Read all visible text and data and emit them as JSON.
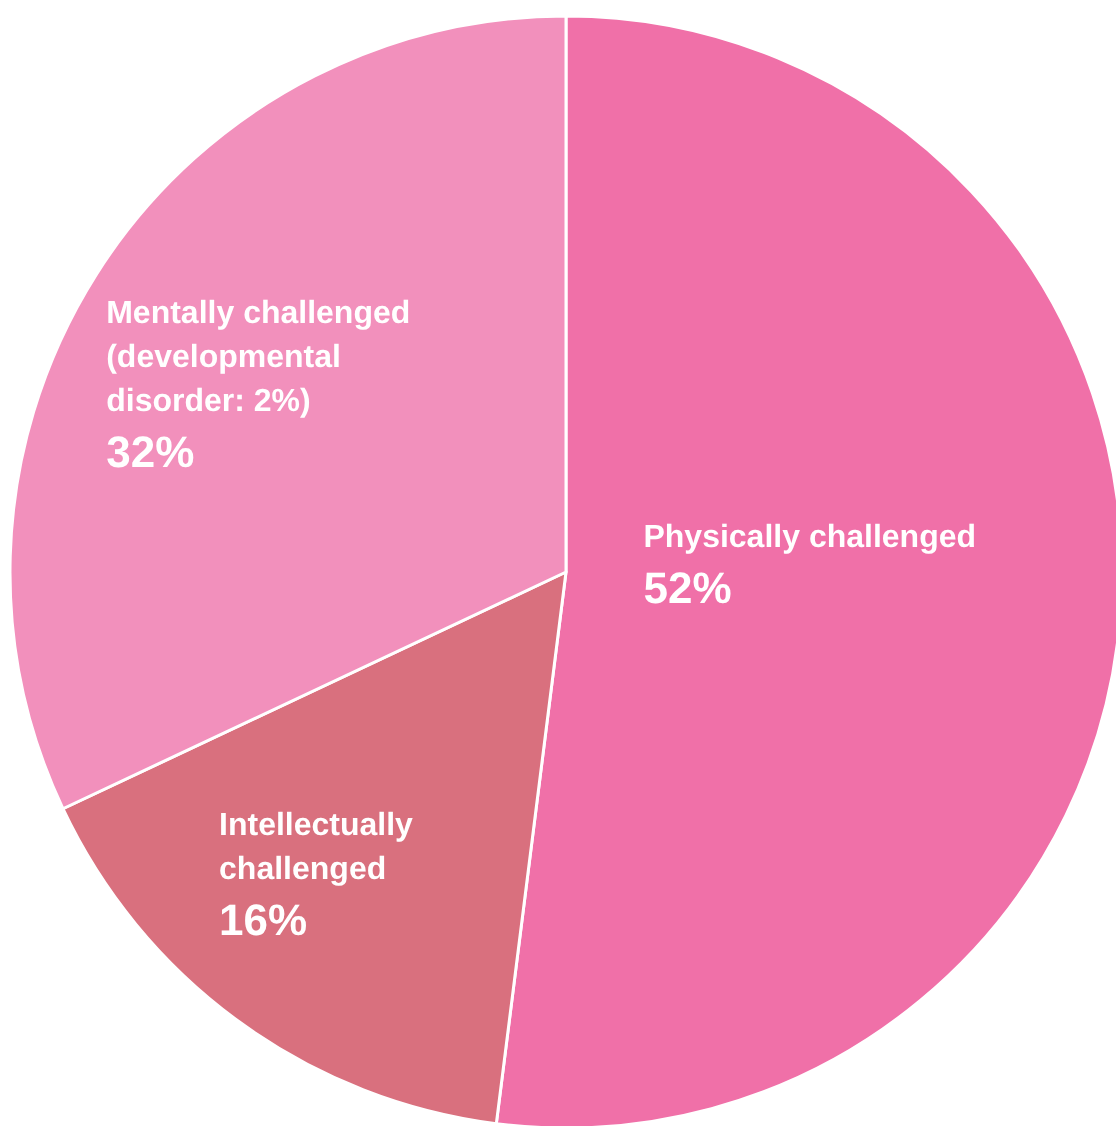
{
  "chart_data": {
    "type": "pie",
    "categories": [
      "Physically challenged",
      "Intellectually challenged",
      "Mentally challenged (developmental disorder: 2%)"
    ],
    "values": [
      52,
      16,
      32
    ],
    "colors": [
      "#f070a8",
      "#d9707e",
      "#f290bc"
    ],
    "value_labels": [
      "52%",
      "16%",
      "32%"
    ],
    "legend": false
  }
}
